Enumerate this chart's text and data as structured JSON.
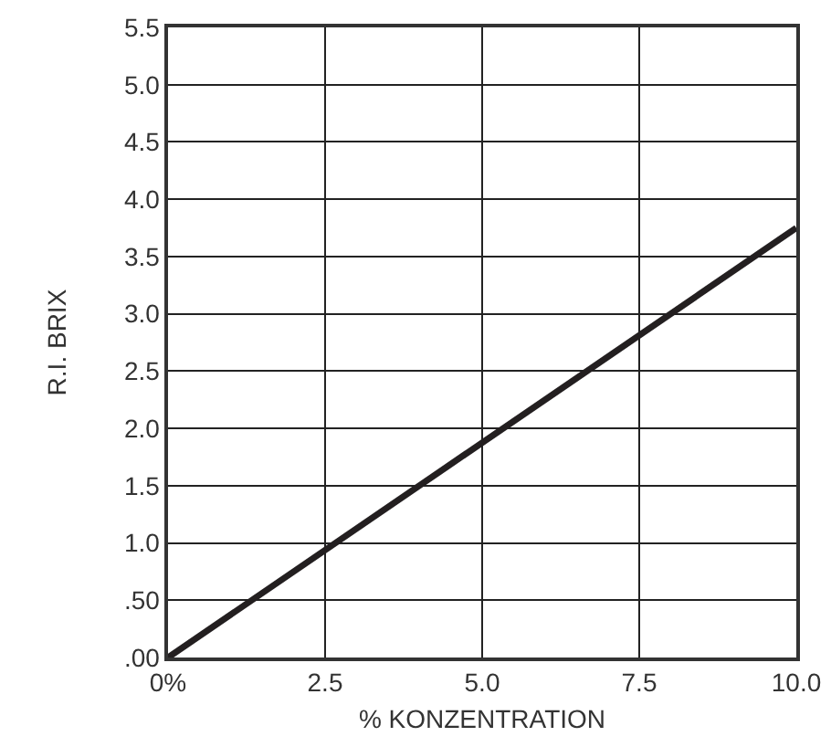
{
  "chart_data": {
    "type": "line",
    "xlabel": "% KONZENTRATION",
    "ylabel": "R.I. BRIX",
    "x": [
      0,
      10
    ],
    "series": [
      {
        "color": "#231f20",
        "values": [
          0,
          3.75
        ]
      }
    ],
    "xlim": [
      0,
      10
    ],
    "xticks": [
      {
        "value": 0,
        "label": "0%"
      },
      {
        "value": 2.5,
        "label": "2.5"
      },
      {
        "value": 5,
        "label": "5.0"
      },
      {
        "value": 7.5,
        "label": "7.5"
      },
      {
        "value": 10,
        "label": "10.0"
      }
    ],
    "ylim": [
      0,
      5.5
    ],
    "yticks": [
      {
        "value": 0,
        "label": ".00"
      },
      {
        "value": 0.5,
        "label": ".50"
      },
      {
        "value": 1,
        "label": "1.0"
      },
      {
        "value": 1.5,
        "label": "1.5"
      },
      {
        "value": 2,
        "label": "2.0"
      },
      {
        "value": 2.5,
        "label": "2.5"
      },
      {
        "value": 3,
        "label": "3.0"
      },
      {
        "value": 3.5,
        "label": "3.5"
      },
      {
        "value": 4,
        "label": "4.0"
      },
      {
        "value": 4.5,
        "label": "4.5"
      },
      {
        "value": 5,
        "label": "5.0"
      },
      {
        "value": 5.5,
        "label": "5.5"
      }
    ],
    "grid": true,
    "marker": "none",
    "line_style": "solid"
  }
}
